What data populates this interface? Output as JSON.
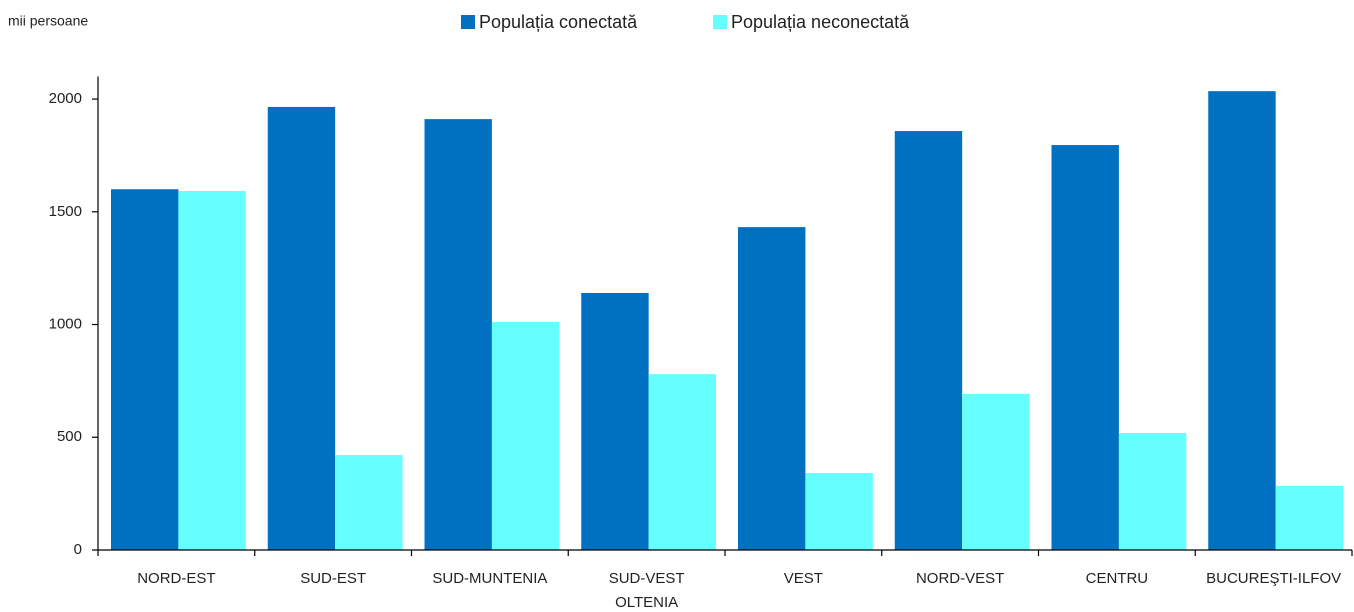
{
  "chart_data": {
    "type": "bar",
    "y_unit": "mii persoane",
    "categories": [
      "NORD-EST",
      "SUD-EST",
      "SUD-MUNTENIA",
      "SUD-VEST OLTENIA",
      "VEST",
      "NORD-VEST",
      "CENTRU",
      "BUCUREŞTI-ILFOV"
    ],
    "series": [
      {
        "name": "Populația conectată",
        "color": "#0070c0",
        "values": [
          1600,
          1965,
          1911,
          1140,
          1432,
          1858,
          1796,
          2035
        ]
      },
      {
        "name": "Populația neconectată",
        "color": "#66ffff",
        "values": [
          1592,
          421,
          1011,
          780,
          341,
          692,
          519,
          284
        ]
      }
    ],
    "ylim": [
      0,
      2100
    ],
    "yticks": [
      0,
      500,
      1000,
      1500,
      2000
    ],
    "grid": false,
    "legend": "top"
  }
}
